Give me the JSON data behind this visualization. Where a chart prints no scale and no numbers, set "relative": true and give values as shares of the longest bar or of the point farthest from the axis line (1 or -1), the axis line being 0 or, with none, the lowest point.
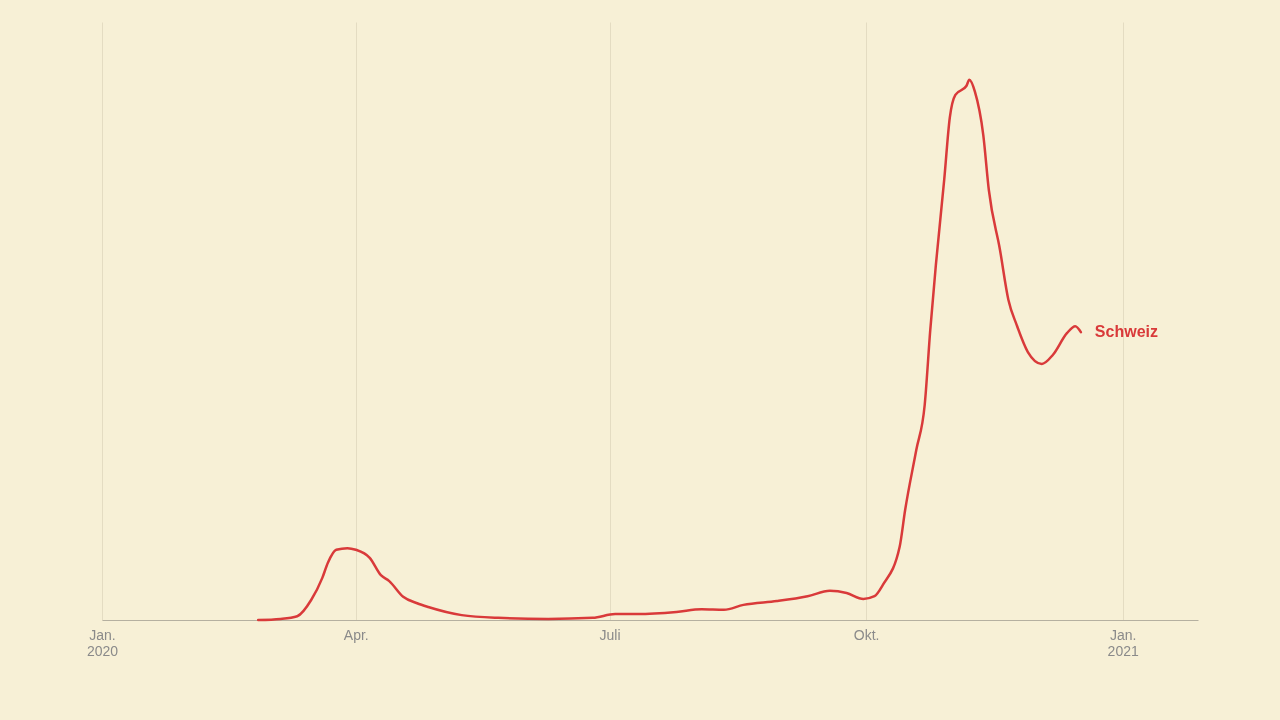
{
  "chart_data": {
    "type": "line",
    "relative": true,
    "grid": "x",
    "legend": false,
    "xlim": [
      "2020-01-01",
      "2021-01-28"
    ],
    "xticks": [
      {
        "value": "2020-01-01",
        "label": "Jan.\n2020"
      },
      {
        "value": "2020-04-01",
        "label": "Apr."
      },
      {
        "value": "2020-07-01",
        "label": "Juli"
      },
      {
        "value": "2020-10-01",
        "label": "Okt."
      },
      {
        "value": "2021-01-01",
        "label": "Jan.\n2021"
      }
    ],
    "x": [
      "2020-02-26",
      "2020-03-05",
      "2020-03-11",
      "2020-03-16",
      "2020-03-20",
      "2020-03-22",
      "2020-03-25",
      "2020-03-29",
      "2020-04-01",
      "2020-04-06",
      "2020-04-10",
      "2020-04-13",
      "2020-04-18",
      "2020-04-23",
      "2020-04-27",
      "2020-05-09",
      "2020-05-22",
      "2020-06-09",
      "2020-06-25",
      "2020-07-03",
      "2020-07-11",
      "2020-07-25",
      "2020-08-03",
      "2020-08-11",
      "2020-08-18",
      "2020-08-30",
      "2020-09-10",
      "2020-09-18",
      "2020-09-24",
      "2020-09-30",
      "2020-10-04",
      "2020-10-07",
      "2020-10-13",
      "2020-10-15",
      "2020-10-19",
      "2020-10-22",
      "2020-10-24",
      "2020-10-26",
      "2020-10-29",
      "2020-10-31",
      "2020-11-02",
      "2020-11-06",
      "2020-11-07",
      "2020-11-09",
      "2020-11-12",
      "2020-11-14",
      "2020-11-18",
      "2020-11-21",
      "2020-11-24",
      "2020-11-28",
      "2020-12-03",
      "2020-12-07",
      "2020-12-12",
      "2020-12-15",
      "2020-12-17"
    ],
    "series": [
      {
        "name": "Schweiz",
        "color": "#d93a3a",
        "values": [
          0,
          0.002,
          0.007,
          0.037,
          0.078,
          0.106,
          0.13,
          0.133,
          0.13,
          0.115,
          0.083,
          0.072,
          0.043,
          0.031,
          0.024,
          0.009,
          0.004,
          0.002,
          0.004,
          0.011,
          0.011,
          0.015,
          0.02,
          0.019,
          0.028,
          0.035,
          0.044,
          0.054,
          0.05,
          0.039,
          0.044,
          0.065,
          0.135,
          0.204,
          0.315,
          0.398,
          0.537,
          0.657,
          0.815,
          0.93,
          0.972,
          0.989,
          1,
          0.978,
          0.898,
          0.796,
          0.685,
          0.593,
          0.546,
          0.496,
          0.474,
          0.491,
          0.531,
          0.544,
          0.533
        ]
      }
    ]
  }
}
